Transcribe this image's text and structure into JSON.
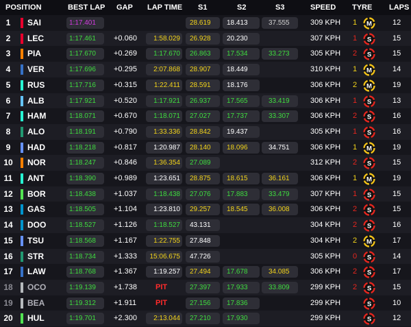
{
  "header": {
    "position": "POSITION",
    "best_lap": "BEST LAP",
    "gap": "GAP",
    "lap_time": "LAP TIME",
    "s1": "S1",
    "s2": "S2",
    "s3": "S3",
    "speed": "SPEED",
    "tyre": "TYRE",
    "laps": "LAPS"
  },
  "colors": {
    "purple": "#d33ae0",
    "green": "#3fdc3f",
    "yellow": "#f2d31a",
    "pit_red": "#ff2b2b",
    "soft": "#e8261e",
    "medium": "#f5c417"
  },
  "rows": [
    {
      "pos": "1",
      "driver": "SAI",
      "team_color": "#e8002d",
      "best": "1:17.401",
      "best_c": "purple",
      "gap": "",
      "lap": "",
      "lap_c": "",
      "s1": "28.619",
      "s1_c": "yellow",
      "s2": "18.413",
      "s2_c": "white",
      "s3": "37.555",
      "s3_c": "grey",
      "speed": "309 KPH",
      "tyre_age": "1",
      "age_c": "yellow",
      "tyre": "M",
      "laps": "12"
    },
    {
      "pos": "2",
      "driver": "LEC",
      "team_color": "#e8002d",
      "best": "1:17.461",
      "best_c": "green",
      "gap": "+0.060",
      "lap": "1:58.029",
      "lap_c": "yellow",
      "s1": "26.928",
      "s1_c": "yellow",
      "s2": "20.230",
      "s2_c": "white",
      "s3": "",
      "s3_c": "",
      "speed": "307 KPH",
      "tyre_age": "1",
      "age_c": "red",
      "tyre": "S",
      "laps": "15"
    },
    {
      "pos": "3",
      "driver": "PIA",
      "team_color": "#ff8000",
      "best": "1:17.670",
      "best_c": "green",
      "gap": "+0.269",
      "lap": "1:17.670",
      "lap_c": "green",
      "s1": "26.863",
      "s1_c": "green",
      "s2": "17.534",
      "s2_c": "green",
      "s3": "33.273",
      "s3_c": "green",
      "speed": "305 KPH",
      "tyre_age": "2",
      "age_c": "red",
      "tyre": "S",
      "laps": "15"
    },
    {
      "pos": "4",
      "driver": "VER",
      "team_color": "#3671c6",
      "best": "1:17.696",
      "best_c": "green",
      "gap": "+0.295",
      "lap": "2:07.868",
      "lap_c": "yellow",
      "s1": "28.907",
      "s1_c": "yellow",
      "s2": "18.449",
      "s2_c": "white",
      "s3": "",
      "s3_c": "",
      "speed": "310 KPH",
      "tyre_age": "1",
      "age_c": "yellow",
      "tyre": "M",
      "laps": "14"
    },
    {
      "pos": "5",
      "driver": "RUS",
      "team_color": "#27f4d2",
      "best": "1:17.716",
      "best_c": "green",
      "gap": "+0.315",
      "lap": "1:22.411",
      "lap_c": "yellow",
      "s1": "28.591",
      "s1_c": "yellow",
      "s2": "18.176",
      "s2_c": "white",
      "s3": "",
      "s3_c": "",
      "speed": "306 KPH",
      "tyre_age": "2",
      "age_c": "yellow",
      "tyre": "M",
      "laps": "19"
    },
    {
      "pos": "6",
      "driver": "ALB",
      "team_color": "#64c4ff",
      "best": "1:17.921",
      "best_c": "green",
      "gap": "+0.520",
      "lap": "1:17.921",
      "lap_c": "green",
      "s1": "26.937",
      "s1_c": "green",
      "s2": "17.565",
      "s2_c": "green",
      "s3": "33.419",
      "s3_c": "green",
      "speed": "306 KPH",
      "tyre_age": "1",
      "age_c": "red",
      "tyre": "S",
      "laps": "13"
    },
    {
      "pos": "7",
      "driver": "HAM",
      "team_color": "#27f4d2",
      "best": "1:18.071",
      "best_c": "green",
      "gap": "+0.670",
      "lap": "1:18.071",
      "lap_c": "green",
      "s1": "27.027",
      "s1_c": "green",
      "s2": "17.737",
      "s2_c": "green",
      "s3": "33.307",
      "s3_c": "green",
      "speed": "306 KPH",
      "tyre_age": "2",
      "age_c": "red",
      "tyre": "S",
      "laps": "16"
    },
    {
      "pos": "8",
      "driver": "ALO",
      "team_color": "#229971",
      "best": "1:18.191",
      "best_c": "green",
      "gap": "+0.790",
      "lap": "1:33.336",
      "lap_c": "yellow",
      "s1": "28.842",
      "s1_c": "yellow",
      "s2": "19.437",
      "s2_c": "white",
      "s3": "",
      "s3_c": "",
      "speed": "305 KPH",
      "tyre_age": "1",
      "age_c": "red",
      "tyre": "S",
      "laps": "16"
    },
    {
      "pos": "9",
      "driver": "HAD",
      "team_color": "#6692ff",
      "best": "1:18.218",
      "best_c": "green",
      "gap": "+0.817",
      "lap": "1:20.987",
      "lap_c": "white",
      "s1": "28.140",
      "s1_c": "yellow",
      "s2": "18.096",
      "s2_c": "yellow",
      "s3": "34.751",
      "s3_c": "white",
      "speed": "306 KPH",
      "tyre_age": "1",
      "age_c": "yellow",
      "tyre": "M",
      "laps": "19"
    },
    {
      "pos": "10",
      "driver": "NOR",
      "team_color": "#ff8000",
      "best": "1:18.247",
      "best_c": "green",
      "gap": "+0.846",
      "lap": "1:36.354",
      "lap_c": "yellow",
      "s1": "27.089",
      "s1_c": "green",
      "s2": "",
      "s2_c": "",
      "s3": "",
      "s3_c": "",
      "speed": "312 KPH",
      "tyre_age": "2",
      "age_c": "red",
      "tyre": "S",
      "laps": "15"
    },
    {
      "pos": "11",
      "driver": "ANT",
      "team_color": "#27f4d2",
      "best": "1:18.390",
      "best_c": "green",
      "gap": "+0.989",
      "lap": "1:23.651",
      "lap_c": "white",
      "s1": "28.875",
      "s1_c": "yellow",
      "s2": "18.615",
      "s2_c": "yellow",
      "s3": "36.161",
      "s3_c": "yellow",
      "speed": "306 KPH",
      "tyre_age": "1",
      "age_c": "yellow",
      "tyre": "M",
      "laps": "19"
    },
    {
      "pos": "12",
      "driver": "BOR",
      "team_color": "#52e252",
      "best": "1:18.438",
      "best_c": "green",
      "gap": "+1.037",
      "lap": "1:18.438",
      "lap_c": "green",
      "s1": "27.076",
      "s1_c": "green",
      "s2": "17.883",
      "s2_c": "green",
      "s3": "33.479",
      "s3_c": "green",
      "speed": "307 KPH",
      "tyre_age": "1",
      "age_c": "red",
      "tyre": "S",
      "laps": "15"
    },
    {
      "pos": "13",
      "driver": "GAS",
      "team_color": "#0093cc",
      "best": "1:18.505",
      "best_c": "green",
      "gap": "+1.104",
      "lap": "1:23.810",
      "lap_c": "white",
      "s1": "29.257",
      "s1_c": "yellow",
      "s2": "18.545",
      "s2_c": "yellow",
      "s3": "36.008",
      "s3_c": "yellow",
      "speed": "306 KPH",
      "tyre_age": "2",
      "age_c": "red",
      "tyre": "S",
      "laps": "15"
    },
    {
      "pos": "14",
      "driver": "DOO",
      "team_color": "#0093cc",
      "best": "1:18.527",
      "best_c": "green",
      "gap": "+1.126",
      "lap": "1:18.527",
      "lap_c": "green",
      "s1": "43.131",
      "s1_c": "white",
      "s2": "",
      "s2_c": "",
      "s3": "",
      "s3_c": "",
      "speed": "304 KPH",
      "tyre_age": "2",
      "age_c": "red",
      "tyre": "S",
      "laps": "16"
    },
    {
      "pos": "15",
      "driver": "TSU",
      "team_color": "#6692ff",
      "best": "1:18.568",
      "best_c": "green",
      "gap": "+1.167",
      "lap": "1:22.755",
      "lap_c": "yellow",
      "s1": "27.848",
      "s1_c": "white",
      "s2": "",
      "s2_c": "",
      "s3": "",
      "s3_c": "",
      "speed": "304 KPH",
      "tyre_age": "2",
      "age_c": "yellow",
      "tyre": "M",
      "laps": "17"
    },
    {
      "pos": "16",
      "driver": "STR",
      "team_color": "#229971",
      "best": "1:18.734",
      "best_c": "green",
      "gap": "+1.333",
      "lap": "15:06.675",
      "lap_c": "yellow",
      "s1": "47.726",
      "s1_c": "white",
      "s2": "",
      "s2_c": "",
      "s3": "",
      "s3_c": "",
      "speed": "305 KPH",
      "tyre_age": "0",
      "age_c": "red",
      "tyre": "S",
      "laps": "14"
    },
    {
      "pos": "17",
      "driver": "LAW",
      "team_color": "#3671c6",
      "best": "1:18.768",
      "best_c": "green",
      "gap": "+1.367",
      "lap": "1:19.257",
      "lap_c": "white",
      "s1": "27.494",
      "s1_c": "yellow",
      "s2": "17.678",
      "s2_c": "green",
      "s3": "34.085",
      "s3_c": "yellow",
      "speed": "306 KPH",
      "tyre_age": "2",
      "age_c": "red",
      "tyre": "S",
      "laps": "17"
    },
    {
      "pos": "18",
      "driver": "OCO",
      "team_color": "#b6babd",
      "best": "1:19.139",
      "best_c": "green",
      "gap": "+1.738",
      "lap": "PIT",
      "lap_c": "pit",
      "s1": "27.397",
      "s1_c": "green",
      "s2": "17.933",
      "s2_c": "green",
      "s3": "33.809",
      "s3_c": "green",
      "speed": "299 KPH",
      "tyre_age": "2",
      "age_c": "red",
      "tyre": "S",
      "laps": "15",
      "dim": true
    },
    {
      "pos": "19",
      "driver": "BEA",
      "team_color": "#b6babd",
      "best": "1:19.312",
      "best_c": "green",
      "gap": "+1.911",
      "lap": "PIT",
      "lap_c": "pit",
      "s1": "27.156",
      "s1_c": "green",
      "s2": "17.836",
      "s2_c": "green",
      "s3": "",
      "s3_c": "",
      "speed": "299 KPH",
      "tyre_age": "",
      "age_c": "",
      "tyre": "S",
      "laps": "10",
      "dim": true
    },
    {
      "pos": "20",
      "driver": "HUL",
      "team_color": "#52e252",
      "best": "1:19.701",
      "best_c": "green",
      "gap": "+2.300",
      "lap": "2:13.044",
      "lap_c": "yellow",
      "s1": "27.210",
      "s1_c": "green",
      "s2": "17.930",
      "s2_c": "green",
      "s3": "",
      "s3_c": "",
      "speed": "299 KPH",
      "tyre_age": "",
      "age_c": "",
      "tyre": "S",
      "laps": "12"
    }
  ]
}
